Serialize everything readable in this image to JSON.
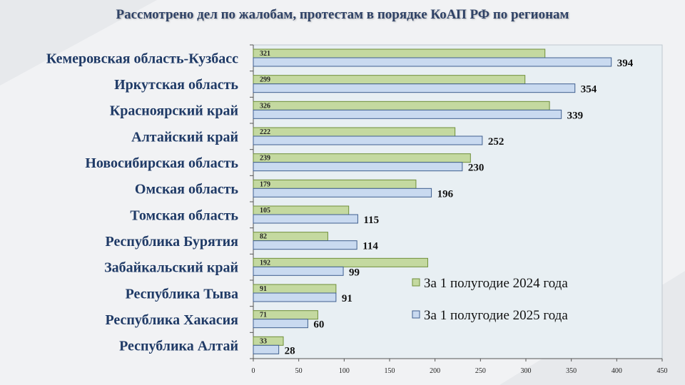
{
  "title": "Рассмотрено дел по жалобам, протестам в порядке КоАП РФ по регионам",
  "colors": {
    "series_2024": "#c4d9a0",
    "series_2024_stroke": "#6f8f3a",
    "series_2025": "#c9daf0",
    "series_2025_stroke": "#3f5f8f",
    "plot_bg": "#e8eff3",
    "label": "#1f3a66"
  },
  "chart_data": {
    "type": "bar",
    "orientation": "horizontal",
    "title": "Рассмотрено дел по жалобам, протестам в порядке КоАП РФ по регионам",
    "categories": [
      "Кемеровская область-Кузбасс",
      "Иркутская область",
      "Красноярский край",
      "Алтайский край",
      "Новосибирская область",
      "Омская область",
      "Томская область",
      "Республика Бурятия",
      "Забайкальский край",
      "Республика Тыва",
      "Республика Хакасия",
      "Республика Алтай"
    ],
    "series": [
      {
        "name": "За 1 полугодие 2024 года",
        "values": [
          321,
          299,
          326,
          222,
          239,
          179,
          105,
          82,
          192,
          91,
          71,
          33
        ]
      },
      {
        "name": "За 1 полугодие 2025 года",
        "values": [
          394,
          354,
          339,
          252,
          230,
          196,
          115,
          114,
          99,
          91,
          60,
          28
        ]
      }
    ],
    "xlim": [
      0,
      450
    ],
    "xticks": [
      0,
      50,
      100,
      150,
      200,
      250,
      300,
      350,
      400,
      450
    ],
    "legend_position": "right",
    "xlabel": "",
    "ylabel": ""
  }
}
